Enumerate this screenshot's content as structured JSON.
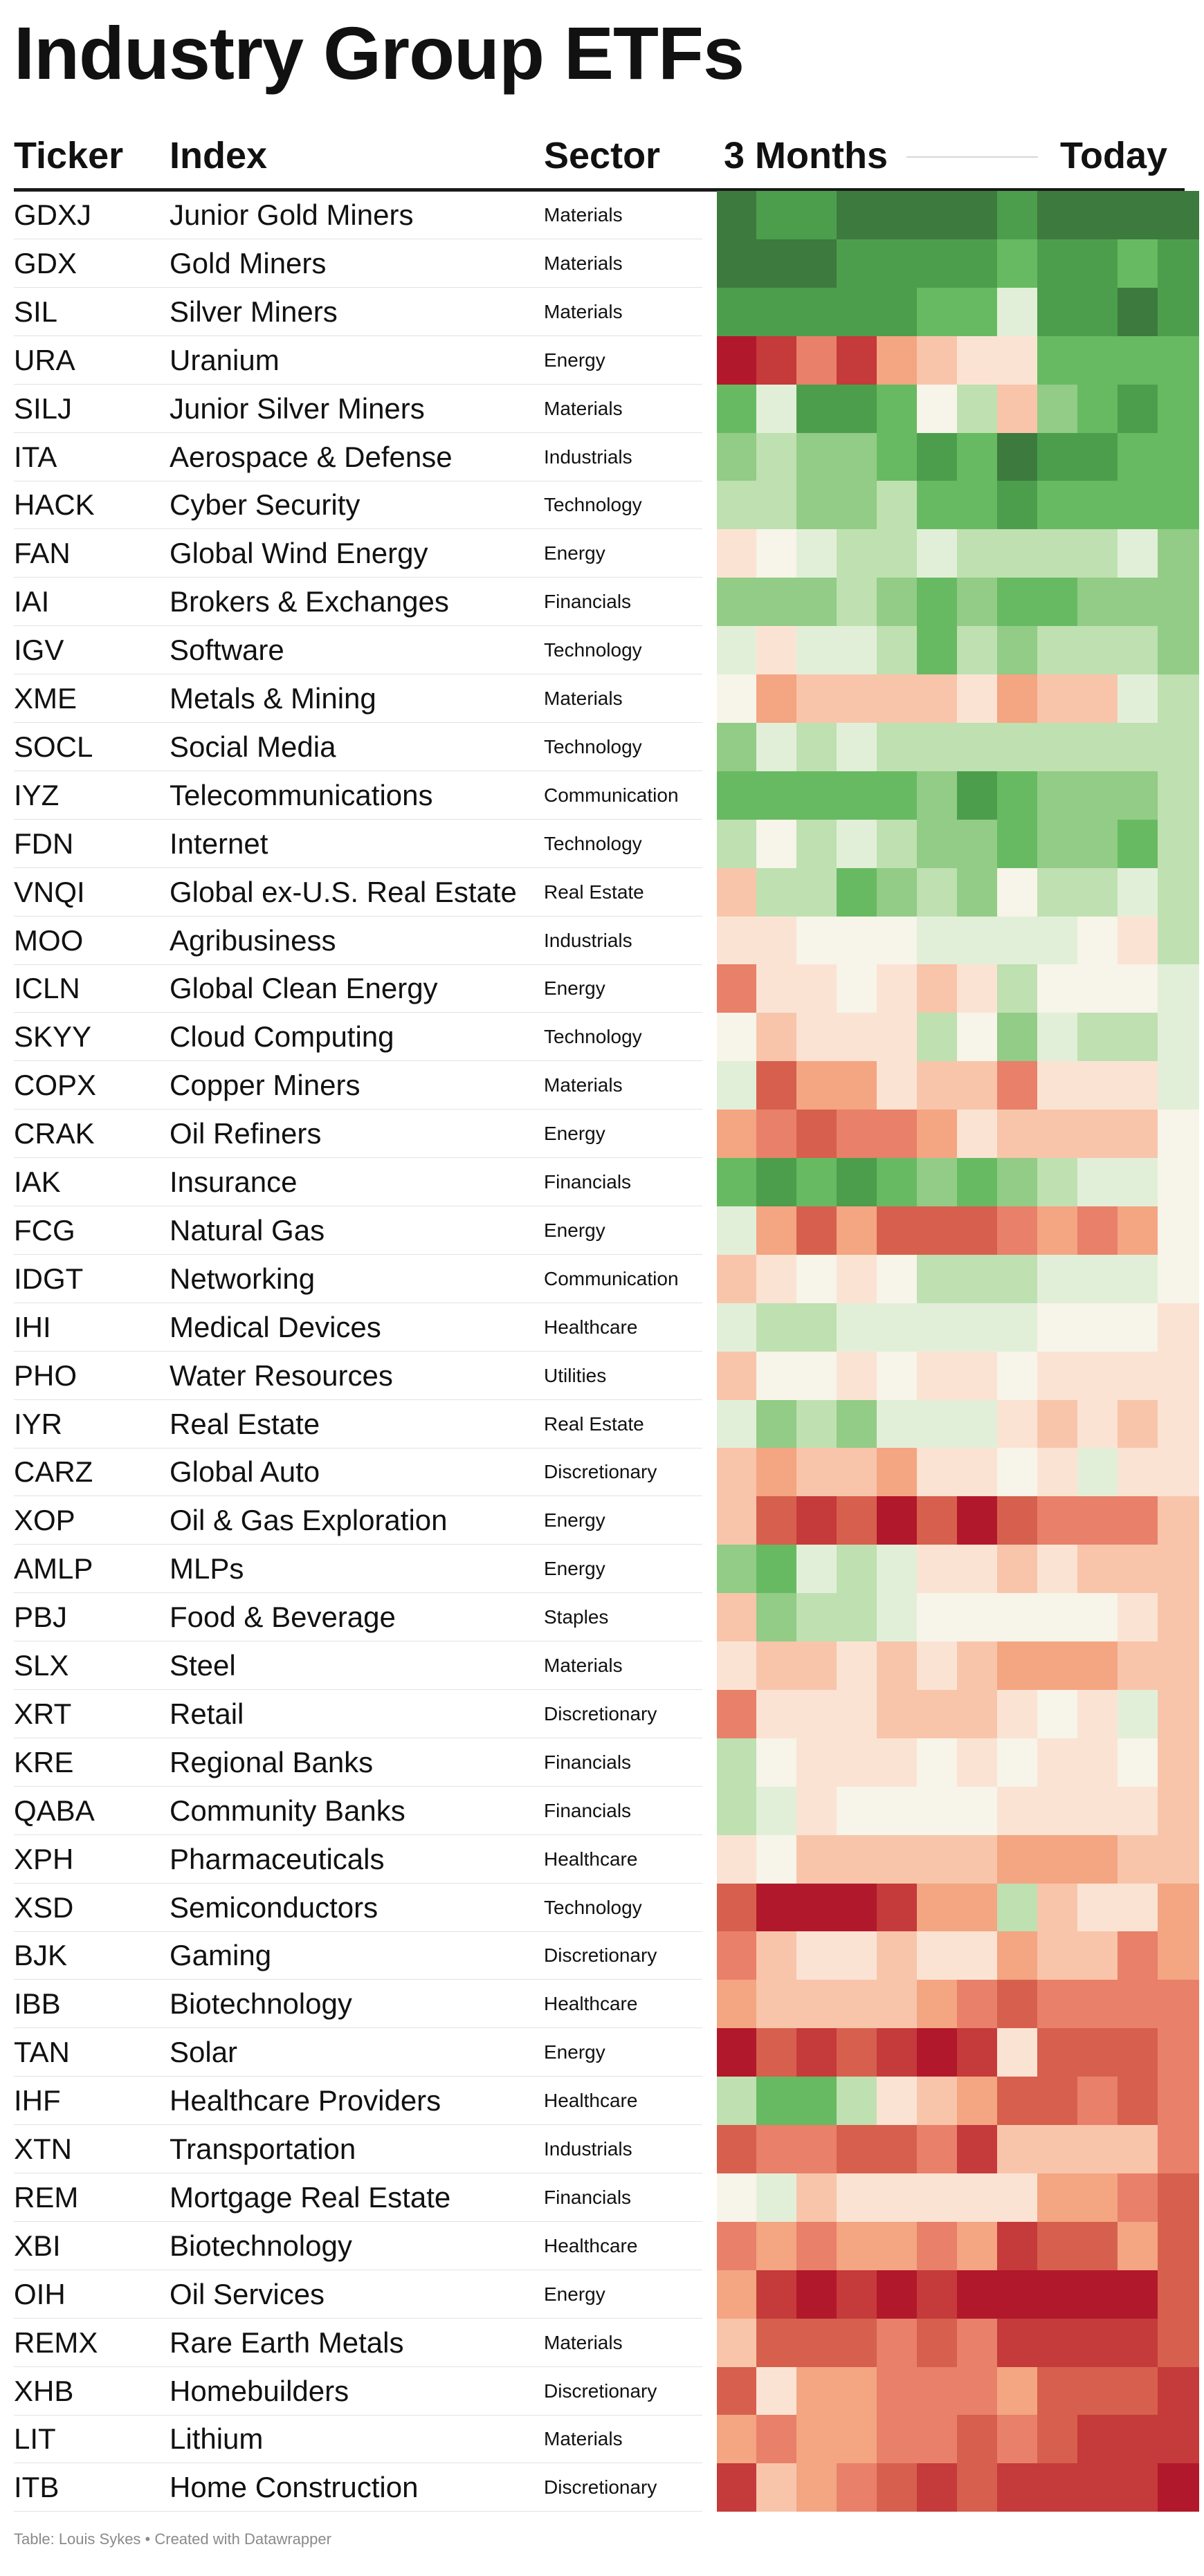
{
  "title": "Industry Group ETFs",
  "headers": {
    "ticker": "Ticker",
    "index": "Index",
    "sector": "Sector",
    "start": "3 Months",
    "end": "Today"
  },
  "footer": "Table: Louis Sykes • Created with Datawrapper",
  "palette": [
    "#b2182b",
    "#c53a3a",
    "#d6604d",
    "#e8806a",
    "#f4a582",
    "#f8c5ab",
    "#fbe3d4",
    "#f7f4e9",
    "#e2efd8",
    "#bfe0b1",
    "#92cc86",
    "#67ba62",
    "#4c9e4c",
    "#3d7a3e"
  ],
  "chart_data": {
    "type": "heatmap",
    "scale": {
      "min": -6,
      "max": 7,
      "low_color": "#b2182b",
      "mid_color": "#f7f4e9",
      "high_color": "#3d7a3e"
    },
    "rows": [
      {
        "ticker": "GDXJ",
        "index": "Junior Gold Miners",
        "sector": "Materials",
        "values": [
          7,
          6,
          6,
          7,
          7,
          7,
          7,
          6,
          7,
          7,
          7,
          7
        ]
      },
      {
        "ticker": "GDX",
        "index": "Gold Miners",
        "sector": "Materials",
        "values": [
          7,
          7,
          7,
          6,
          6,
          6,
          6,
          5,
          6,
          6,
          5,
          6
        ]
      },
      {
        "ticker": "SIL",
        "index": "Silver Miners",
        "sector": "Materials",
        "values": [
          6,
          6,
          6,
          6,
          6,
          5,
          5,
          2,
          6,
          6,
          7,
          6
        ]
      },
      {
        "ticker": "URA",
        "index": "Uranium",
        "sector": "Energy",
        "values": [
          -6,
          -5,
          -3,
          -5,
          -2,
          -1,
          0,
          0,
          5,
          5,
          5,
          5
        ]
      },
      {
        "ticker": "SILJ",
        "index": "Junior Silver Miners",
        "sector": "Materials",
        "values": [
          5,
          2,
          6,
          6,
          5,
          1,
          3,
          -1,
          4,
          5,
          6,
          5
        ]
      },
      {
        "ticker": "ITA",
        "index": "Aerospace & Defense",
        "sector": "Industrials",
        "values": [
          4,
          3,
          4,
          4,
          5,
          6,
          5,
          7,
          6,
          6,
          5,
          5
        ]
      },
      {
        "ticker": "HACK",
        "index": "Cyber Security",
        "sector": "Technology",
        "values": [
          3,
          3,
          4,
          4,
          3,
          5,
          5,
          6,
          5,
          5,
          5,
          5
        ]
      },
      {
        "ticker": "FAN",
        "index": "Global Wind Energy",
        "sector": "Energy",
        "values": [
          0,
          1,
          2,
          3,
          3,
          2,
          3,
          3,
          3,
          3,
          2,
          4
        ]
      },
      {
        "ticker": "IAI",
        "index": "Brokers & Exchanges",
        "sector": "Financials",
        "values": [
          4,
          4,
          4,
          3,
          4,
          5,
          4,
          5,
          5,
          4,
          4,
          4
        ]
      },
      {
        "ticker": "IGV",
        "index": "Software",
        "sector": "Technology",
        "values": [
          2,
          0,
          2,
          2,
          3,
          5,
          3,
          4,
          3,
          3,
          3,
          4
        ]
      },
      {
        "ticker": "XME",
        "index": "Metals & Mining",
        "sector": "Materials",
        "values": [
          1,
          -2,
          -1,
          -1,
          -1,
          -1,
          0,
          -2,
          -1,
          -1,
          2,
          3
        ]
      },
      {
        "ticker": "SOCL",
        "index": "Social Media",
        "sector": "Technology",
        "values": [
          4,
          2,
          3,
          2,
          3,
          3,
          3,
          3,
          3,
          3,
          3,
          3
        ]
      },
      {
        "ticker": "IYZ",
        "index": "Telecommunications",
        "sector": "Communication",
        "values": [
          5,
          5,
          5,
          5,
          5,
          4,
          6,
          5,
          4,
          4,
          4,
          3
        ]
      },
      {
        "ticker": "FDN",
        "index": "Internet",
        "sector": "Technology",
        "values": [
          3,
          1,
          3,
          2,
          3,
          4,
          4,
          5,
          4,
          4,
          5,
          3
        ]
      },
      {
        "ticker": "VNQI",
        "index": "Global ex-U.S. Real Estate",
        "sector": "Real Estate",
        "values": [
          -1,
          3,
          3,
          5,
          4,
          3,
          4,
          1,
          3,
          3,
          2,
          3
        ]
      },
      {
        "ticker": "MOO",
        "index": "Agribusiness",
        "sector": "Industrials",
        "values": [
          0,
          0,
          1,
          1,
          1,
          2,
          2,
          2,
          2,
          1,
          0,
          3
        ]
      },
      {
        "ticker": "ICLN",
        "index": "Global Clean Energy",
        "sector": "Energy",
        "values": [
          -3,
          0,
          0,
          1,
          0,
          -1,
          0,
          3,
          1,
          1,
          1,
          2
        ]
      },
      {
        "ticker": "SKYY",
        "index": "Cloud Computing",
        "sector": "Technology",
        "values": [
          1,
          -1,
          0,
          0,
          0,
          3,
          1,
          4,
          2,
          3,
          3,
          2
        ]
      },
      {
        "ticker": "COPX",
        "index": "Copper Miners",
        "sector": "Materials",
        "values": [
          2,
          -4,
          -2,
          -2,
          0,
          -1,
          -1,
          -3,
          0,
          0,
          0,
          2
        ]
      },
      {
        "ticker": "CRAK",
        "index": "Oil Refiners",
        "sector": "Energy",
        "values": [
          -2,
          -3,
          -4,
          -3,
          -3,
          -2,
          0,
          -1,
          -1,
          -1,
          -1,
          1
        ]
      },
      {
        "ticker": "IAK",
        "index": "Insurance",
        "sector": "Financials",
        "values": [
          5,
          6,
          5,
          6,
          5,
          4,
          5,
          4,
          3,
          2,
          2,
          1
        ]
      },
      {
        "ticker": "FCG",
        "index": "Natural Gas",
        "sector": "Energy",
        "values": [
          2,
          -2,
          -4,
          -2,
          -4,
          -4,
          -4,
          -3,
          -2,
          -3,
          -2,
          1
        ]
      },
      {
        "ticker": "IDGT",
        "index": "Networking",
        "sector": "Communication",
        "values": [
          -1,
          0,
          1,
          0,
          1,
          3,
          3,
          3,
          2,
          2,
          2,
          1
        ]
      },
      {
        "ticker": "IHI",
        "index": "Medical Devices",
        "sector": "Healthcare",
        "values": [
          2,
          3,
          3,
          2,
          2,
          2,
          2,
          2,
          1,
          1,
          1,
          0
        ]
      },
      {
        "ticker": "PHO",
        "index": "Water Resources",
        "sector": "Utilities",
        "values": [
          -1,
          1,
          1,
          0,
          1,
          0,
          0,
          1,
          0,
          0,
          0,
          0
        ]
      },
      {
        "ticker": "IYR",
        "index": "Real Estate",
        "sector": "Real Estate",
        "values": [
          2,
          4,
          3,
          4,
          2,
          2,
          2,
          0,
          -1,
          0,
          -1,
          0
        ]
      },
      {
        "ticker": "CARZ",
        "index": "Global Auto",
        "sector": "Discretionary",
        "values": [
          -1,
          -2,
          -1,
          -1,
          -2,
          0,
          0,
          1,
          0,
          2,
          0,
          0
        ]
      },
      {
        "ticker": "XOP",
        "index": "Oil & Gas Exploration",
        "sector": "Energy",
        "values": [
          -1,
          -4,
          -5,
          -4,
          -6,
          -4,
          -6,
          -4,
          -3,
          -3,
          -3,
          -1
        ]
      },
      {
        "ticker": "AMLP",
        "index": "MLPs",
        "sector": "Energy",
        "values": [
          4,
          5,
          2,
          3,
          2,
          0,
          0,
          -1,
          0,
          -1,
          -1,
          -1
        ]
      },
      {
        "ticker": "PBJ",
        "index": "Food & Beverage",
        "sector": "Staples",
        "values": [
          -1,
          4,
          3,
          3,
          2,
          1,
          1,
          1,
          1,
          1,
          0,
          -1
        ]
      },
      {
        "ticker": "SLX",
        "index": "Steel",
        "sector": "Materials",
        "values": [
          0,
          -1,
          -1,
          0,
          -1,
          0,
          -1,
          -2,
          -2,
          -2,
          -1,
          -1
        ]
      },
      {
        "ticker": "XRT",
        "index": "Retail",
        "sector": "Discretionary",
        "values": [
          -3,
          0,
          0,
          0,
          -1,
          -1,
          -1,
          0,
          1,
          0,
          2,
          -1
        ]
      },
      {
        "ticker": "KRE",
        "index": "Regional Banks",
        "sector": "Financials",
        "values": [
          3,
          1,
          0,
          0,
          0,
          1,
          0,
          1,
          0,
          0,
          1,
          -1
        ]
      },
      {
        "ticker": "QABA",
        "index": "Community Banks",
        "sector": "Financials",
        "values": [
          3,
          2,
          0,
          1,
          1,
          1,
          1,
          0,
          0,
          0,
          0,
          -1
        ]
      },
      {
        "ticker": "XPH",
        "index": "Pharmaceuticals",
        "sector": "Healthcare",
        "values": [
          0,
          1,
          -1,
          -1,
          -1,
          -1,
          -1,
          -2,
          -2,
          -2,
          -1,
          -1
        ]
      },
      {
        "ticker": "XSD",
        "index": "Semiconductors",
        "sector": "Technology",
        "values": [
          -4,
          -6,
          -6,
          -6,
          -5,
          -2,
          -2,
          3,
          -1,
          0,
          0,
          -2
        ]
      },
      {
        "ticker": "BJK",
        "index": "Gaming",
        "sector": "Discretionary",
        "values": [
          -3,
          -1,
          0,
          0,
          -1,
          0,
          0,
          -2,
          -1,
          -1,
          -3,
          -2
        ]
      },
      {
        "ticker": "IBB",
        "index": "Biotechnology",
        "sector": "Healthcare",
        "values": [
          -2,
          -1,
          -1,
          -1,
          -1,
          -2,
          -3,
          -4,
          -3,
          -3,
          -3,
          -3
        ]
      },
      {
        "ticker": "TAN",
        "index": "Solar",
        "sector": "Energy",
        "values": [
          -6,
          -4,
          -5,
          -4,
          -5,
          -6,
          -5,
          0,
          -4,
          -4,
          -4,
          -3
        ]
      },
      {
        "ticker": "IHF",
        "index": "Healthcare Providers",
        "sector": "Healthcare",
        "values": [
          3,
          5,
          5,
          3,
          0,
          -1,
          -2,
          -4,
          -4,
          -3,
          -4,
          -3
        ]
      },
      {
        "ticker": "XTN",
        "index": "Transportation",
        "sector": "Industrials",
        "values": [
          -4,
          -3,
          -3,
          -4,
          -4,
          -3,
          -5,
          -1,
          -1,
          -1,
          -1,
          -3
        ]
      },
      {
        "ticker": "REM",
        "index": "Mortgage Real Estate",
        "sector": "Financials",
        "values": [
          1,
          2,
          -1,
          0,
          0,
          0,
          0,
          0,
          -2,
          -2,
          -3,
          -4
        ]
      },
      {
        "ticker": "XBI",
        "index": "Biotechnology",
        "sector": "Healthcare",
        "values": [
          -3,
          -2,
          -3,
          -2,
          -2,
          -3,
          -2,
          -5,
          -4,
          -4,
          -2,
          -4
        ]
      },
      {
        "ticker": "OIH",
        "index": "Oil Services",
        "sector": "Energy",
        "values": [
          -2,
          -5,
          -6,
          -5,
          -6,
          -5,
          -6,
          -6,
          -6,
          -6,
          -6,
          -4
        ]
      },
      {
        "ticker": "REMX",
        "index": "Rare Earth Metals",
        "sector": "Materials",
        "values": [
          -1,
          -4,
          -4,
          -4,
          -3,
          -4,
          -3,
          -5,
          -5,
          -5,
          -5,
          -4
        ]
      },
      {
        "ticker": "XHB",
        "index": "Homebuilders",
        "sector": "Discretionary",
        "values": [
          -4,
          0,
          -2,
          -2,
          -3,
          -3,
          -3,
          -2,
          -4,
          -4,
          -4,
          -5
        ]
      },
      {
        "ticker": "LIT",
        "index": "Lithium",
        "sector": "Materials",
        "values": [
          -2,
          -3,
          -2,
          -2,
          -3,
          -3,
          -4,
          -3,
          -4,
          -5,
          -5,
          -5
        ]
      },
      {
        "ticker": "ITB",
        "index": "Home Construction",
        "sector": "Discretionary",
        "values": [
          -5,
          -1,
          -2,
          -3,
          -4,
          -5,
          -4,
          -5,
          -5,
          -5,
          -5,
          -6
        ]
      }
    ]
  }
}
